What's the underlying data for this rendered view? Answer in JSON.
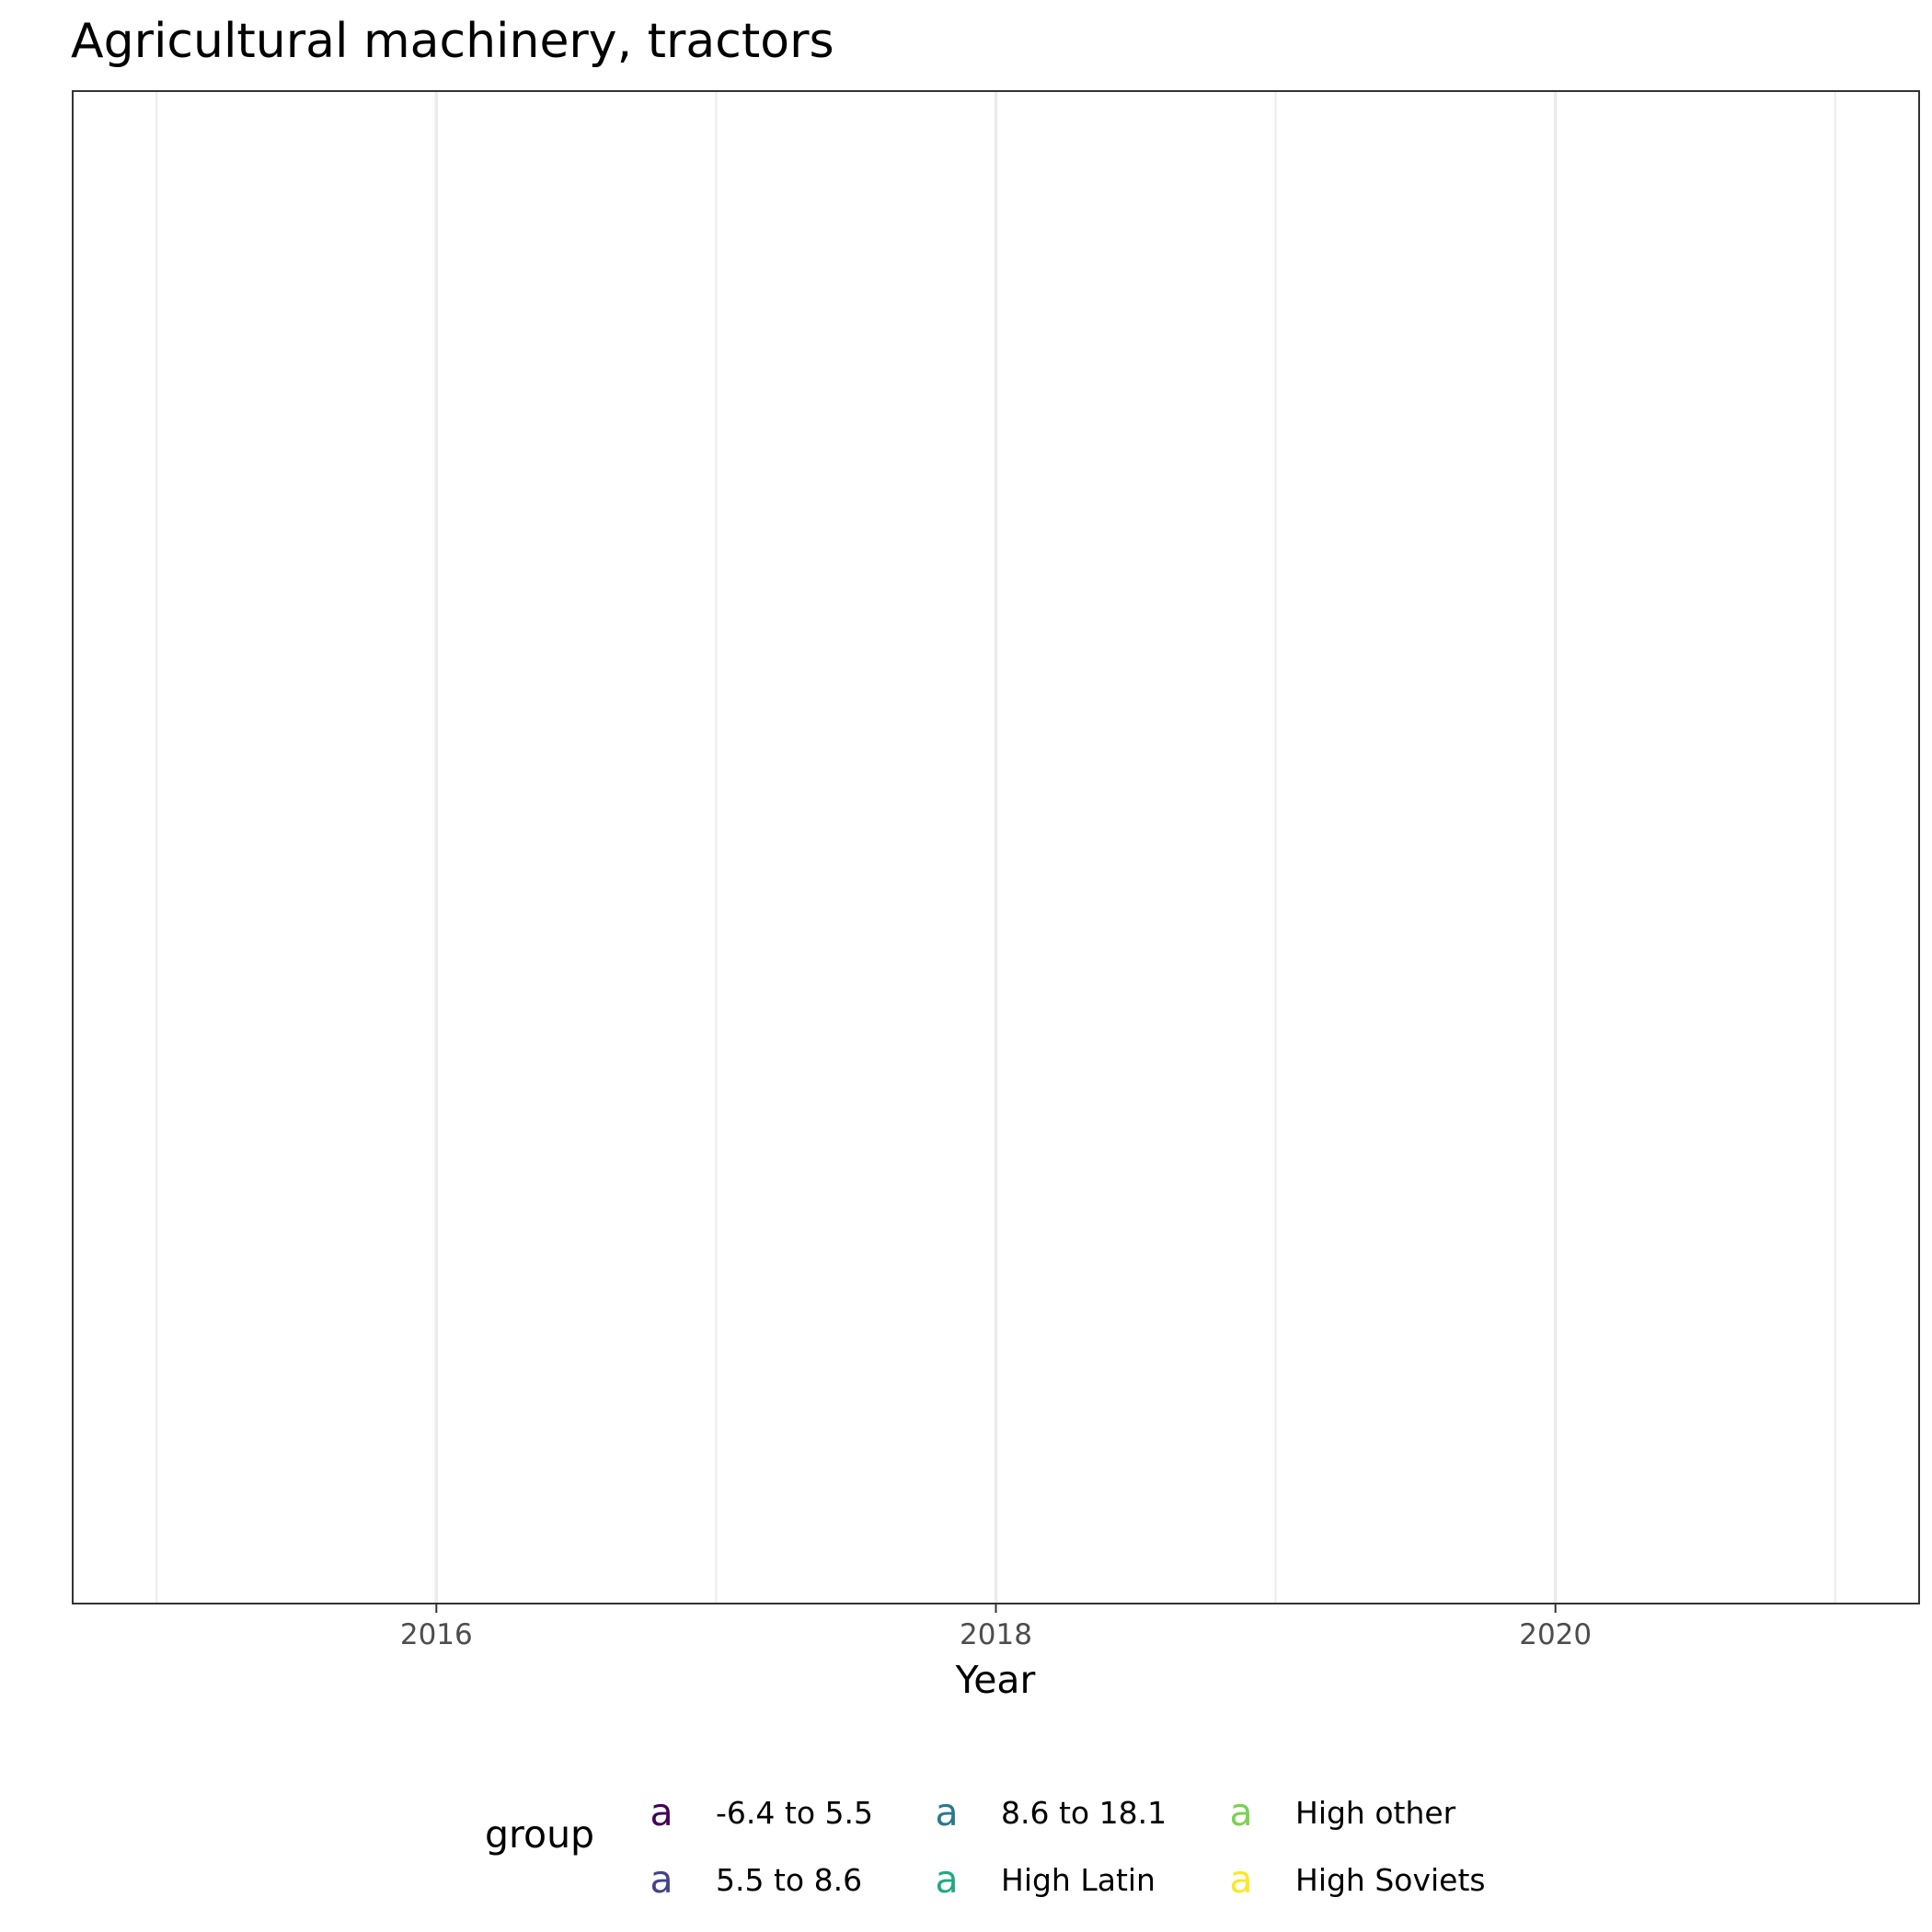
{
  "chart_data": {
    "type": "line",
    "title": "Agricultural machinery, tractors",
    "xlabel": "Year",
    "ylabel": "",
    "xlim": [
      2014.7,
      2021.3
    ],
    "x_major_ticks": [
      2016,
      2018,
      2020
    ],
    "x_minor_ticks": [
      2015,
      2017,
      2019,
      2021
    ],
    "x_tick_labels": [
      "2016",
      "2018",
      "2020"
    ],
    "grid": "vertical",
    "legend": {
      "title": "group",
      "position": "bottom",
      "key_glyph": "a",
      "entries": [
        {
          "label": "-6.4 to 5.5",
          "color": "#440154"
        },
        {
          "label": "5.5 to 8.6",
          "color": "#414487"
        },
        {
          "label": "8.6 to 18.1",
          "color": "#2A788E"
        },
        {
          "label": "High Latin",
          "color": "#22A884"
        },
        {
          "label": "High other",
          "color": "#7AD151"
        },
        {
          "label": "High Soviets",
          "color": "#FDE725"
        }
      ]
    },
    "series": []
  }
}
